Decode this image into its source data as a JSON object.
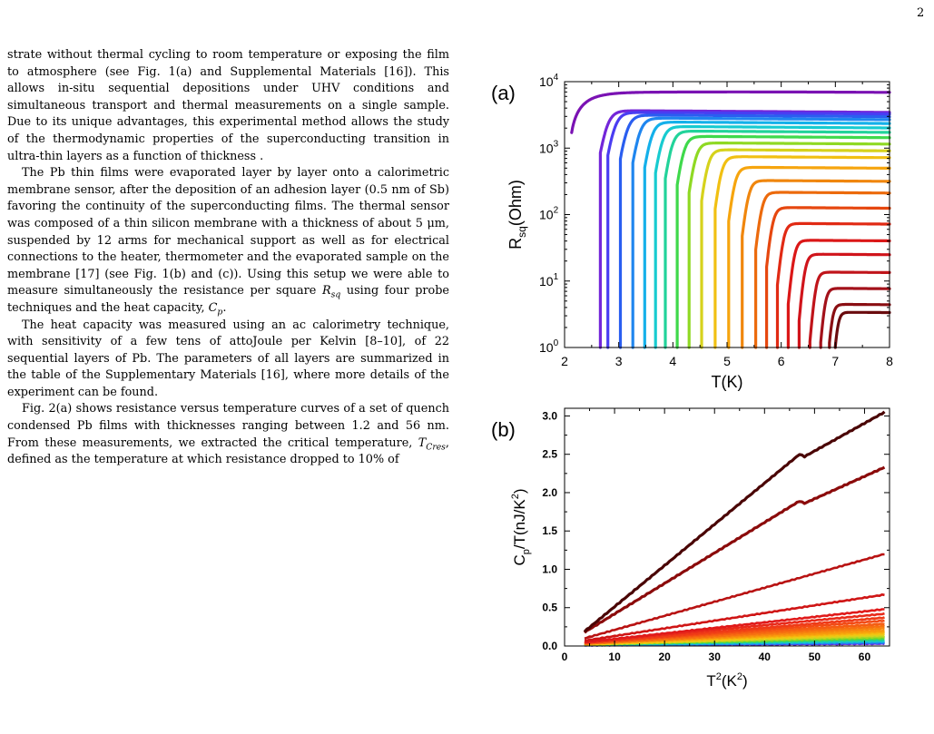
{
  "page": {
    "number": "2",
    "paragraphs": [
      {
        "id": "p1",
        "indent": false,
        "text": "strate without thermal cycling to room temperature or exposing the film to atmosphere (see Fig. 1(a) and Supplemental Materials [16]). This allows in-situ sequential depositions under UHV conditions and simultaneous transport and thermal measurements on a single sample. Due to its unique advantages, this experimental method allows the study of the thermodynamic properties of the superconducting transition in ultra-thin layers as a function of thickness ."
      },
      {
        "id": "p2",
        "indent": true,
        "parts": [
          "The Pb thin films were evaporated layer by layer onto a calorimetric membrane sensor, after the deposition of an adhesion layer (0.5 nm of Sb) favoring the continuity of the superconducting films. The thermal sensor was composed of a thin silicon membrane with a thickness of about 5 μm, suspended by 12 arms for mechanical support as well as for electrical connections to the heater, thermometer and the evaporated sample on the membrane [17] (see Fig. 1(b) and (c)). Using this setup we were able to measure simultaneously the resistance per square ",
          "R",
          "sq",
          " using four probe techniques and the heat capacity, ",
          "C",
          "p",
          "."
        ]
      },
      {
        "id": "p3",
        "indent": true,
        "text": "The heat capacity was measured using an ac calorimetry technique, with sensitivity of a few tens of attoJoule per Kelvin [8–10], of 22 sequential layers of Pb. The parameters of all layers are summarized in the table of the Supplementary Materials [16], where more details of the experiment can be found."
      },
      {
        "id": "p4",
        "indent": true,
        "parts": [
          "Fig. 2(a) shows resistance versus temperature curves of a set of quench condensed Pb films with thicknesses ranging between 1.2 and 56 nm. From these measurements, we extracted the critical temperature, ",
          "T",
          "Cres",
          ", defined as the temperature at which resistance dropped to 10% of"
        ]
      }
    ]
  },
  "chart_data": [
    {
      "type": "line",
      "panel_label": "(a)",
      "xlabel": "T(K)",
      "ylabel": "R",
      "ylabel_sub": "sq",
      "ylabel_unit": "(Ohm)",
      "xlim": [
        2,
        8
      ],
      "ylim": [
        1,
        10000
      ],
      "log_y": true,
      "xticks": [
        2,
        3,
        4,
        5,
        6,
        7,
        8
      ],
      "yticks": [
        {
          "value": 1,
          "base": "10",
          "exp": "0"
        },
        {
          "value": 10,
          "base": "10",
          "exp": "1"
        },
        {
          "value": 100,
          "base": "10",
          "exp": "2"
        },
        {
          "value": 1000,
          "base": "10",
          "exp": "3"
        },
        {
          "value": 10000,
          "base": "10",
          "exp": "4"
        }
      ],
      "series": [
        {
          "color": "#7a12b3",
          "tc": 2.15,
          "rn": 7000
        },
        {
          "color": "#7326d9",
          "tc": 2.68,
          "rn": 3600
        },
        {
          "color": "#4a3df2",
          "tc": 2.82,
          "rn": 3400
        },
        {
          "color": "#2a5ef0",
          "tc": 3.05,
          "rn": 3100
        },
        {
          "color": "#1f86ef",
          "tc": 3.28,
          "rn": 2800
        },
        {
          "color": "#14b0ea",
          "tc": 3.5,
          "rn": 2450
        },
        {
          "color": "#17cbd0",
          "tc": 3.7,
          "rn": 2100
        },
        {
          "color": "#22d39a",
          "tc": 3.88,
          "rn": 1800
        },
        {
          "color": "#3fd94b",
          "tc": 4.1,
          "rn": 1500
        },
        {
          "color": "#8fd923",
          "tc": 4.32,
          "rn": 1200
        },
        {
          "color": "#d6d21c",
          "tc": 4.55,
          "rn": 950
        },
        {
          "color": "#f1c012",
          "tc": 4.8,
          "rn": 750
        },
        {
          "color": "#f6a50e",
          "tc": 5.05,
          "rn": 520
        },
        {
          "color": "#f0860d",
          "tc": 5.3,
          "rn": 330
        },
        {
          "color": "#ec6a0c",
          "tc": 5.55,
          "rn": 220
        },
        {
          "color": "#e6470f",
          "tc": 5.75,
          "rn": 130
        },
        {
          "color": "#e12a14",
          "tc": 5.95,
          "rn": 75
        },
        {
          "color": "#db1717",
          "tc": 6.15,
          "rn": 42
        },
        {
          "color": "#d0141b",
          "tc": 6.35,
          "rn": 26
        },
        {
          "color": "#c0141a",
          "tc": 6.55,
          "rn": 14
        },
        {
          "color": "#a3111a",
          "tc": 6.72,
          "rn": 8
        },
        {
          "color": "#8a0e12",
          "tc": 6.85,
          "rn": 4.6
        },
        {
          "color": "#6a0b0e",
          "tc": 6.95,
          "rn": 3.5
        }
      ]
    },
    {
      "type": "line",
      "panel_label": "(b)",
      "xlabel": "T",
      "xlabel_sup": "2",
      "xlabel_unit_open": "(K",
      "xlabel_unit_sup": "2",
      "xlabel_unit_close": ")",
      "ylabel": "C",
      "ylabel_sub": "p",
      "ylabel_rest": "/T(nJ/K",
      "ylabel_sup": "2",
      "ylabel_close": ")",
      "xlim": [
        0,
        65
      ],
      "ylim": [
        0,
        3.1
      ],
      "xticks": [
        0,
        10,
        20,
        30,
        40,
        50,
        60
      ],
      "yticks": [
        "0.0",
        "0.5",
        "1.0",
        "1.5",
        "2.0",
        "2.5",
        "3.0"
      ],
      "series": [
        {
          "color": "#4a0505",
          "x": [
            4,
            47,
            48,
            64
          ],
          "y": [
            0.19,
            2.5,
            2.47,
            3.05
          ]
        },
        {
          "color": "#8b0b0b",
          "x": [
            4,
            47,
            48,
            64
          ],
          "y": [
            0.18,
            1.89,
            1.86,
            2.33
          ]
        },
        {
          "color": "#b81212",
          "x": [
            4,
            64
          ],
          "y": [
            0.1,
            1.2
          ]
        },
        {
          "color": "#cf1515",
          "x": [
            4,
            64
          ],
          "y": [
            0.07,
            0.67
          ]
        },
        {
          "color": "#e01a1a",
          "x": [
            4,
            64
          ],
          "y": [
            0.05,
            0.48
          ]
        },
        {
          "color": "#e82a1a",
          "x": [
            4,
            64
          ],
          "y": [
            0.05,
            0.42
          ]
        },
        {
          "color": "#ef3a17",
          "x": [
            4,
            64
          ],
          "y": [
            0.04,
            0.37
          ]
        },
        {
          "color": "#f24a14",
          "x": [
            4,
            64
          ],
          "y": [
            0.04,
            0.33
          ]
        },
        {
          "color": "#f55d12",
          "x": [
            4,
            64
          ],
          "y": [
            0.04,
            0.29
          ]
        },
        {
          "color": "#f67010",
          "x": [
            4,
            64
          ],
          "y": [
            0.03,
            0.26
          ]
        },
        {
          "color": "#f7850e",
          "x": [
            4,
            64
          ],
          "y": [
            0.03,
            0.23
          ]
        },
        {
          "color": "#f89a0c",
          "x": [
            4,
            64
          ],
          "y": [
            0.03,
            0.2
          ]
        },
        {
          "color": "#f7b10c",
          "x": [
            4,
            64
          ],
          "y": [
            0.03,
            0.18
          ]
        },
        {
          "color": "#f0c712",
          "x": [
            4,
            64
          ],
          "y": [
            0.02,
            0.16
          ]
        },
        {
          "color": "#d8d21c",
          "x": [
            4,
            64
          ],
          "y": [
            0.02,
            0.14
          ]
        },
        {
          "color": "#a8d623",
          "x": [
            4,
            64
          ],
          "y": [
            0.02,
            0.12
          ]
        },
        {
          "color": "#62d832",
          "x": [
            4,
            64
          ],
          "y": [
            0.02,
            0.1
          ]
        },
        {
          "color": "#22d18c",
          "x": [
            4,
            64
          ],
          "y": [
            0.02,
            0.08
          ]
        },
        {
          "color": "#17c8cf",
          "x": [
            4,
            64
          ],
          "y": [
            0.02,
            0.065
          ]
        },
        {
          "color": "#1a95ee",
          "x": [
            4,
            64
          ],
          "y": [
            0.01,
            0.05
          ]
        },
        {
          "color": "#3558f2",
          "x": [
            4,
            64
          ],
          "y": [
            0.01,
            0.04
          ]
        },
        {
          "color": "#6e28d8",
          "x": [
            4,
            64
          ],
          "y": [
            0.01,
            0.03
          ]
        }
      ]
    }
  ]
}
